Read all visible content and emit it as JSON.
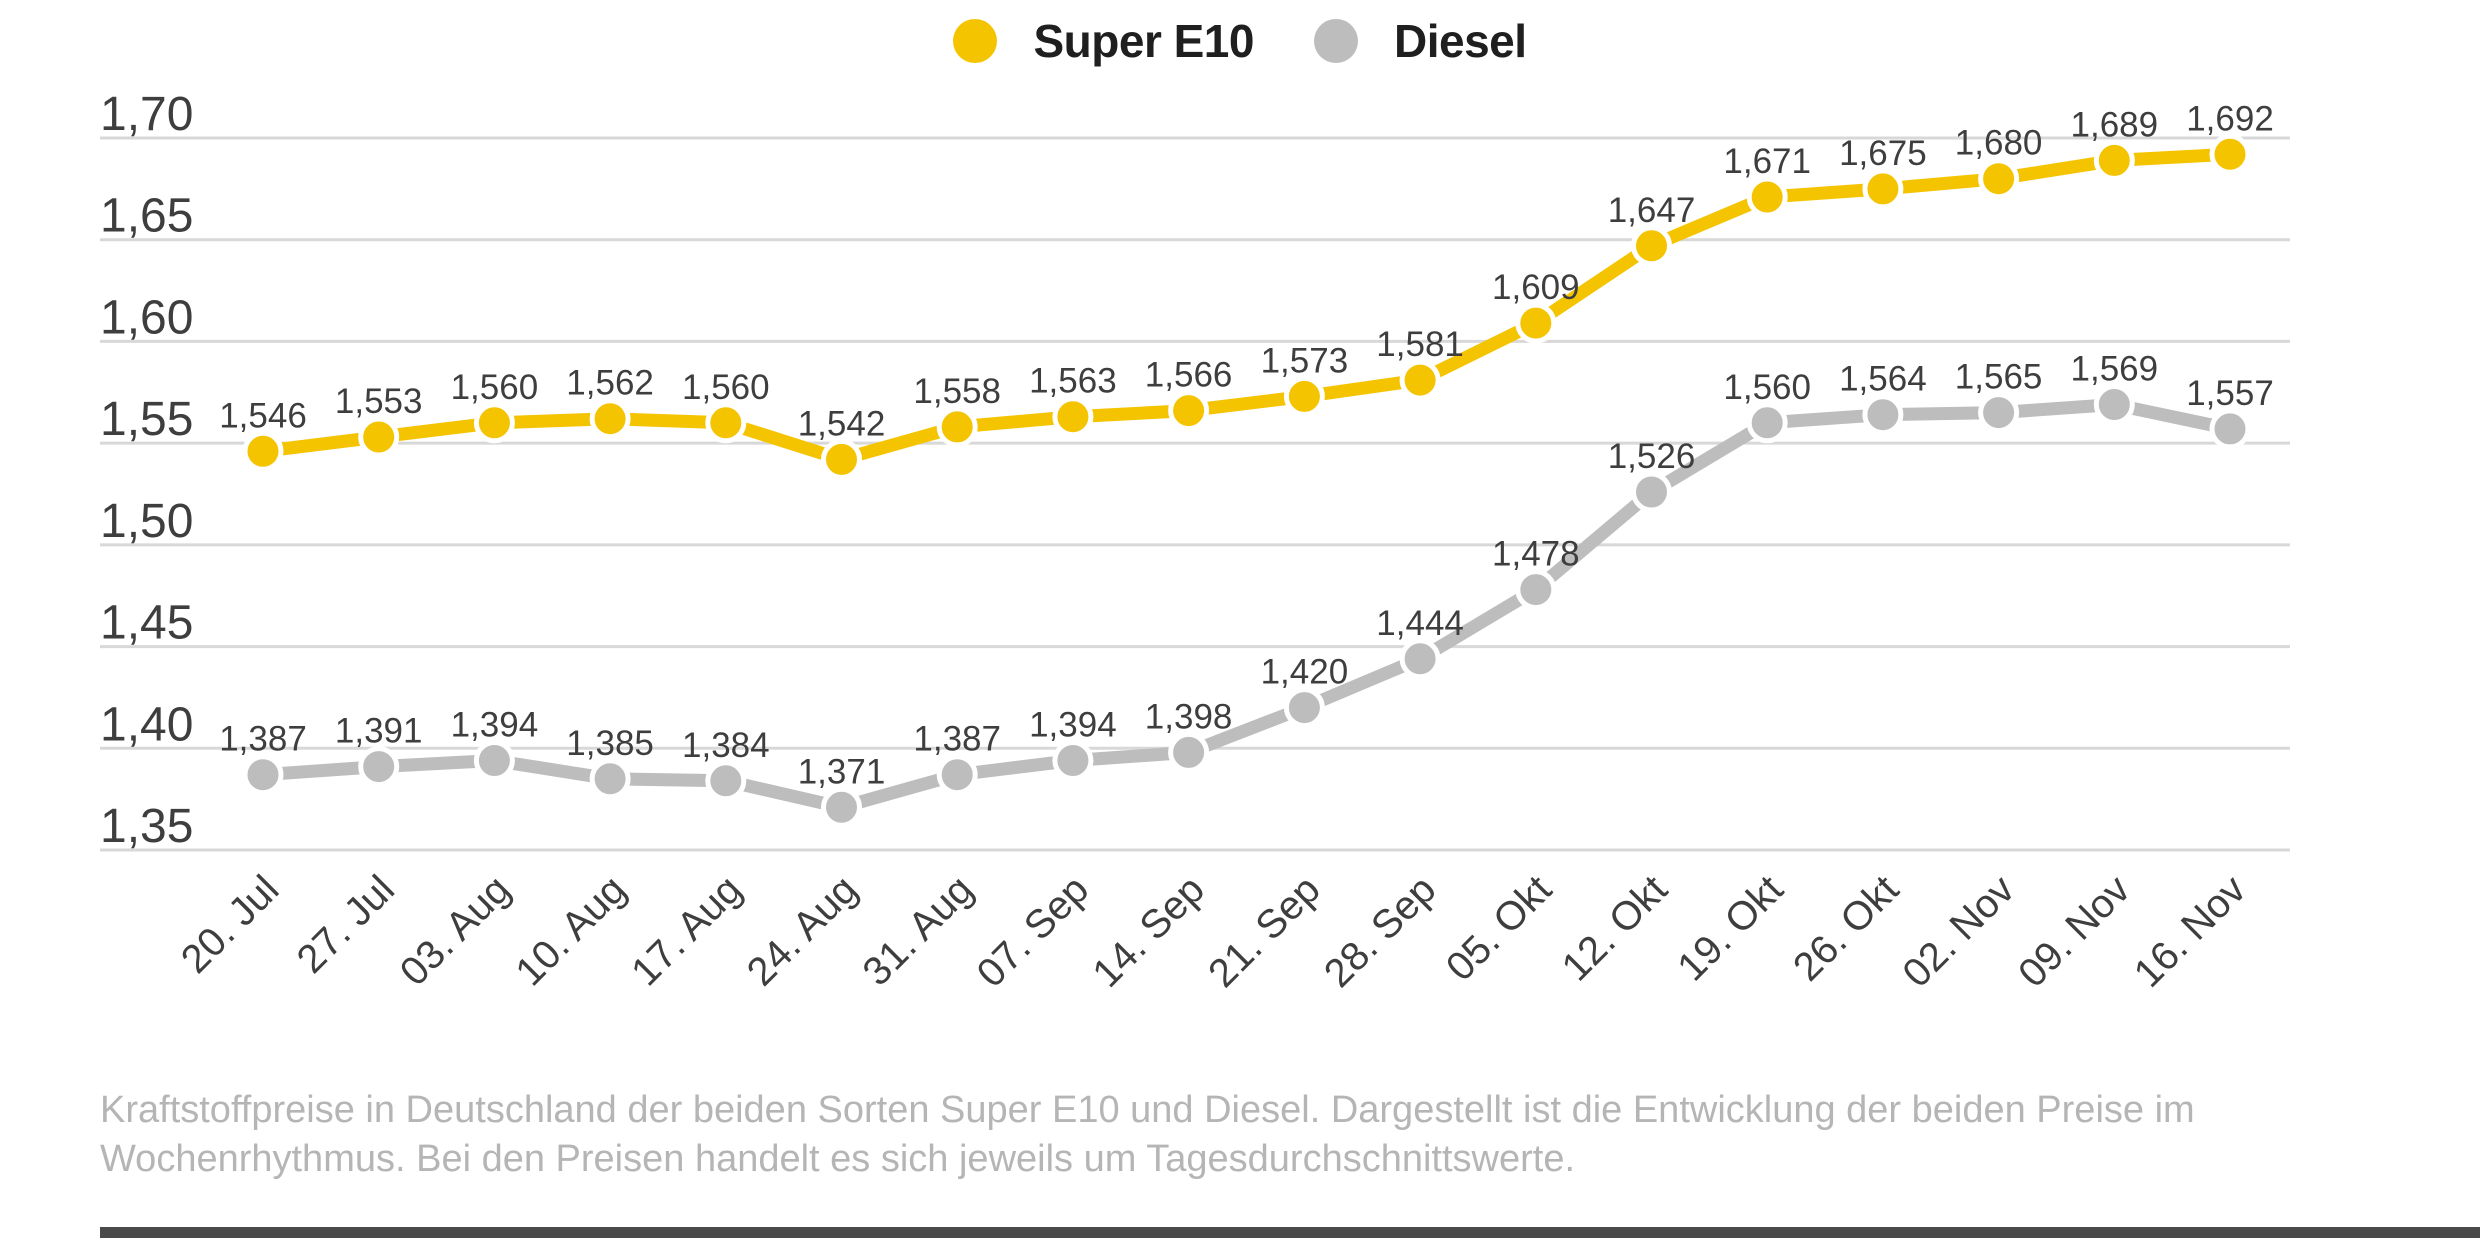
{
  "page": {
    "background": "#ffffff"
  },
  "legend": {
    "items": [
      {
        "label": "Super E10",
        "color": "#F5C400"
      },
      {
        "label": "Diesel",
        "color": "#BDBDBD"
      }
    ]
  },
  "chart_data": {
    "type": "line",
    "title": "",
    "xlabel": "",
    "ylabel": "",
    "ylim": [
      1.35,
      1.7
    ],
    "grid": true,
    "legend_position": "top-center",
    "decimal_style": "german-comma",
    "categories": [
      "20. Jul",
      "27. Jul",
      "03. Aug",
      "10. Aug",
      "17. Aug",
      "24. Aug",
      "31. Aug",
      "07. Sep",
      "14. Sep",
      "21. Sep",
      "28. Sep",
      "05. Okt",
      "12. Okt",
      "19. Okt",
      "26. Okt",
      "02. Nov",
      "09. Nov",
      "16. Nov"
    ],
    "yticks": [
      {
        "label": "1,70",
        "value": 1.7
      },
      {
        "label": "1,65",
        "value": 1.65
      },
      {
        "label": "1,60",
        "value": 1.6
      },
      {
        "label": "1,55",
        "value": 1.55
      },
      {
        "label": "1,50",
        "value": 1.5
      },
      {
        "label": "1,45",
        "value": 1.45
      },
      {
        "label": "1,40",
        "value": 1.4
      },
      {
        "label": "1,35",
        "value": 1.35
      }
    ],
    "series": [
      {
        "name": "Super E10",
        "color": "#F5C400",
        "values": [
          1.546,
          1.553,
          1.56,
          1.562,
          1.56,
          1.542,
          1.558,
          1.563,
          1.566,
          1.573,
          1.581,
          1.609,
          1.647,
          1.671,
          1.675,
          1.68,
          1.689,
          1.692
        ],
        "labels": [
          "1,546",
          "1,553",
          "1,560",
          "1,562",
          "1,560",
          "1,542",
          "1,558",
          "1,563",
          "1,566",
          "1,573",
          "1,581",
          "1,609",
          "1,647",
          "1,671",
          "1,675",
          "1,680",
          "1,689",
          "1,692"
        ]
      },
      {
        "name": "Diesel",
        "color": "#BDBDBD",
        "values": [
          1.387,
          1.391,
          1.394,
          1.385,
          1.384,
          1.371,
          1.387,
          1.394,
          1.398,
          1.42,
          1.444,
          1.478,
          1.526,
          1.56,
          1.564,
          1.565,
          1.569,
          1.557
        ],
        "labels": [
          "1,387",
          "1,391",
          "1,394",
          "1,385",
          "1,384",
          "1,371",
          "1,387",
          "1,394",
          "1,398",
          "1,420",
          "1,444",
          "1,478",
          "1,526",
          "1,560",
          "1,564",
          "1,565",
          "1,569",
          "1,557"
        ]
      }
    ],
    "styles": {
      "gridline_color": "#d8d8d8",
      "tick_label_color": "#3e3e3e",
      "data_label_color": "#3e3e3e",
      "date_label_color": "#3e3e3e"
    }
  },
  "caption": {
    "lines": [
      "Kraftstoffpreise in Deutschland der beiden Sorten Super E10 und Diesel. Dargestellt ist die Entwicklung der beiden Preise im",
      "Wochenrhythmus. Bei den Preisen handelt es sich jeweils um Tagesdurchschnittswerte."
    ]
  },
  "footer": {
    "bar_color": "#4a4a4a"
  }
}
